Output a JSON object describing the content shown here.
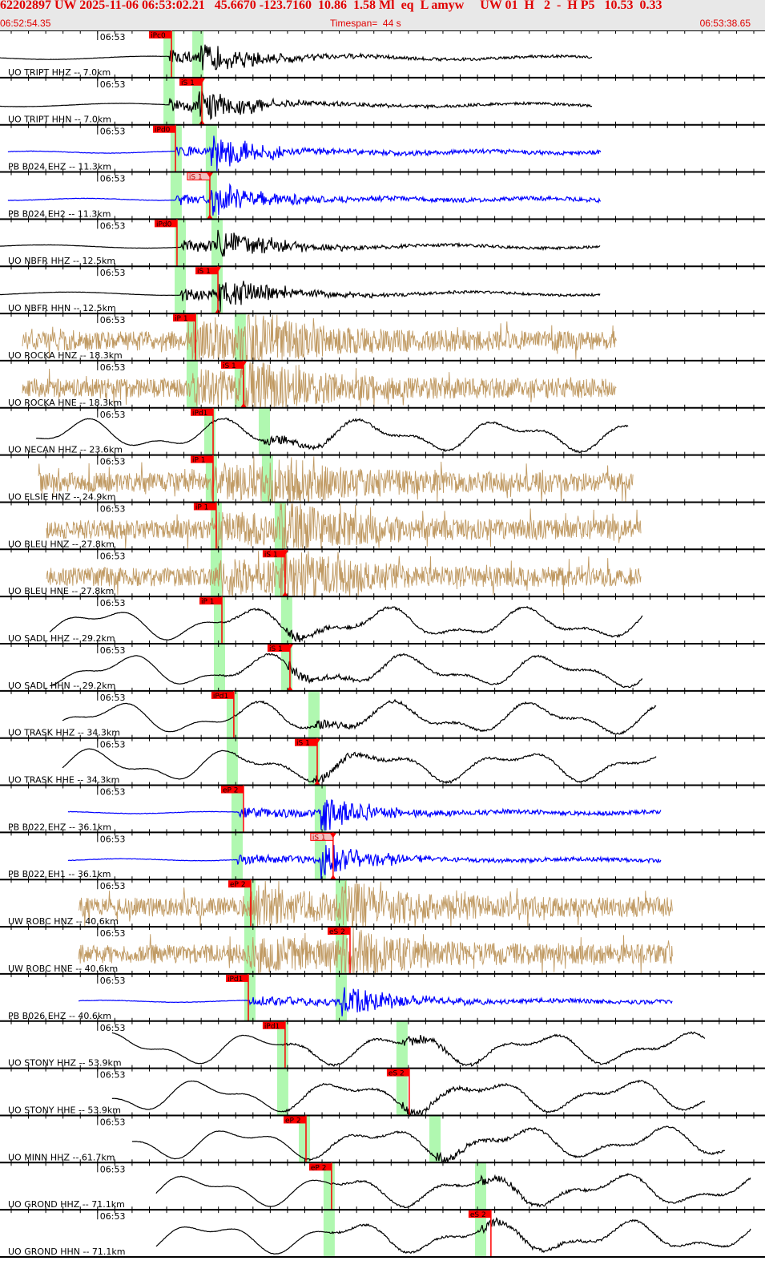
{
  "header": {
    "title": "62202897 UW 2025-11-06 06:53:02.21   45.6670 -123.7160  10.86  1.58 Ml  eq  L amyw     UW 01  H   2  -  H P5   10.53  0.33",
    "start_time": "06:52:54.35",
    "timespan": "Timespan=  44 s",
    "end_time": "06:53:38.65"
  },
  "colors": {
    "header_bg": "#e8e8e8",
    "header_text": "#e00000",
    "pick": "#ff0000",
    "pick_pending": "#f4c0c0",
    "predicted_band": "#b0f8b0",
    "broadband": "#000000",
    "strainmeter": "#0000ff",
    "strong_motion": "#c09a63"
  },
  "chart_data": {
    "type": "line",
    "title": "",
    "x_range": [
      "06:52:54.35",
      "06:53:38.65"
    ],
    "x_tick_interval_s": 1,
    "minute_label": "06:53",
    "traces": [
      {
        "label": "UO TRIPT HHZ -- 7.0km",
        "color": "#000000",
        "kind": "local",
        "span": [
          "06:52:54.35",
          "06:53:28.67"
        ],
        "pick": {
          "label": "iPc0",
          "time": "06:53:04.28",
          "phase": "P"
        },
        "predicted": [
          "06:53:04.14",
          "06:53:05.81"
        ]
      },
      {
        "label": "UO TRIPT HHN -- 7.0km",
        "color": "#000000",
        "kind": "local",
        "span": [
          "06:52:54.35",
          "06:53:28.67"
        ],
        "pick": {
          "label": "iS 1",
          "time": "06:53:06.04",
          "phase": "S"
        },
        "predicted": [
          "06:53:04.14",
          "06:53:05.81"
        ]
      },
      {
        "label": "PB B024 EHZ -- 11.3km",
        "color": "#0000ff",
        "kind": "quiet",
        "span": [
          "06:52:54.81",
          "06:53:29.14"
        ],
        "pick": {
          "label": "iPd0",
          "time": "06:53:04.51",
          "phase": "P"
        },
        "predicted": [
          "06:53:04.55",
          "06:53:06.59"
        ]
      },
      {
        "label": "PB B024 EH2 -- 11.3km",
        "color": "#0000ff",
        "kind": "quiet",
        "span": [
          "06:52:54.81",
          "06:53:29.14"
        ],
        "pick": {
          "label": "iS 1",
          "time": "06:53:06.50",
          "phase": "S",
          "pending": true
        },
        "predicted": [
          "06:53:04.55",
          "06:53:06.59"
        ]
      },
      {
        "label": "UO NBFR HHZ -- 12.5km",
        "color": "#000000",
        "kind": "local",
        "span": [
          "06:52:54.35",
          "06:53:29.14"
        ],
        "pick": {
          "label": "iPd0",
          "time": "06:53:04.60",
          "phase": "P"
        },
        "predicted": [
          "06:53:04.79",
          "06:53:06.92"
        ]
      },
      {
        "label": "UO NBFR HHN -- 12.5km",
        "color": "#000000",
        "kind": "local",
        "span": [
          "06:52:54.35",
          "06:53:29.14"
        ],
        "pick": {
          "label": "iS 1",
          "time": "06:53:06.97",
          "phase": "S"
        },
        "predicted": [
          "06:53:04.79",
          "06:53:06.92"
        ]
      },
      {
        "label": "UO ROCKA HNZ -- 18.3km",
        "color": "#c09a63",
        "kind": "noise",
        "span": [
          "06:52:55.65",
          "06:53:30.06"
        ],
        "pick": {
          "label": "iP 1",
          "time": "06:53:05.67",
          "phase": "P"
        },
        "predicted": [
          "06:53:05.48",
          "06:53:08.26"
        ]
      },
      {
        "label": "UO ROCKA HNE -- 18.3km",
        "color": "#c09a63",
        "kind": "noise",
        "span": [
          "06:52:55.65",
          "06:53:30.06"
        ],
        "pick": {
          "label": "iS 1",
          "time": "06:53:08.45",
          "phase": "S"
        },
        "predicted": [
          "06:53:05.48",
          "06:53:08.26"
        ]
      },
      {
        "label": "UO NECAN HHZ -- 23.6km",
        "color": "#000000",
        "kind": "smooth",
        "span": [
          "06:52:56.44",
          "06:53:30.76"
        ],
        "pick": {
          "label": "iPd1",
          "time": "06:53:06.69",
          "phase": "P"
        },
        "predicted": [
          "06:53:06.50",
          "06:53:09.66"
        ]
      },
      {
        "label": "UO ELSIE HNZ -- 24.9km",
        "color": "#c09a63",
        "kind": "noise",
        "span": [
          "06:52:56.58",
          "06:53:31.00"
        ],
        "pick": {
          "label": "iP 1",
          "time": "06:53:06.69",
          "phase": "P"
        },
        "predicted": [
          "06:53:06.59",
          "06:53:09.84"
        ]
      },
      {
        "label": "UO BLEU HNZ -- 27.8km",
        "color": "#c09a63",
        "kind": "noise",
        "span": [
          "06:52:57.04",
          "06:53:31.46"
        ],
        "pick": {
          "label": "iP 1",
          "time": "06:53:06.87",
          "phase": "P"
        },
        "predicted": [
          "06:53:06.87",
          "06:53:10.58"
        ]
      },
      {
        "label": "UO BLEU HNE -- 27.8km",
        "color": "#c09a63",
        "kind": "noise",
        "span": [
          "06:52:57.04",
          "06:53:31.46"
        ],
        "pick": {
          "label": "iS 1",
          "time": "06:53:10.86",
          "phase": "S"
        },
        "predicted": [
          "06:53:06.87",
          "06:53:10.58"
        ]
      },
      {
        "label": "UO SADL HHZ -- 29.2km",
        "color": "#000000",
        "kind": "smooth",
        "span": [
          "06:52:57.23",
          "06:53:31.59"
        ],
        "pick": {
          "label": "iP 1",
          "time": "06:53:07.20",
          "phase": "P"
        },
        "predicted": [
          "06:53:07.06",
          "06:53:10.95"
        ]
      },
      {
        "label": "UO SADL HHN -- 29.2km",
        "color": "#000000",
        "kind": "smooth",
        "span": [
          "06:52:57.23",
          "06:53:31.59"
        ],
        "pick": {
          "label": "iS 1",
          "time": "06:53:11.14",
          "phase": "S"
        },
        "predicted": [
          "06:53:07.06",
          "06:53:10.95"
        ]
      },
      {
        "label": "UO TRASK HHZ -- 34.3km",
        "color": "#000000",
        "kind": "smooth",
        "span": [
          "06:52:57.97",
          "06:53:32.38"
        ],
        "pick": {
          "label": "iPd1",
          "time": "06:53:07.89",
          "phase": "P"
        },
        "predicted": [
          "06:53:07.80",
          "06:53:12.53"
        ]
      },
      {
        "label": "UO TRASK HHE -- 34.3km",
        "color": "#000000",
        "kind": "smooth",
        "span": [
          "06:52:57.97",
          "06:53:32.38"
        ],
        "pick": {
          "label": "iS 1",
          "time": "06:53:12.72",
          "phase": "S"
        },
        "predicted": [
          "06:53:07.80",
          "06:53:12.53"
        ]
      },
      {
        "label": "PB B022 EHZ -- 36.1km",
        "color": "#0000ff",
        "kind": "quiet",
        "span": [
          "06:52:58.29",
          "06:53:32.62"
        ],
        "pick": {
          "label": "eP 2",
          "time": "06:53:08.45",
          "phase": "P"
        },
        "predicted": [
          "06:53:08.08",
          "06:53:12.90"
        ]
      },
      {
        "label": "PB B022 EH1 -- 36.1km",
        "color": "#0000ff",
        "kind": "quiet",
        "span": [
          "06:52:58.29",
          "06:53:32.62"
        ],
        "pick": {
          "label": "iS 1",
          "time": "06:53:13.64",
          "phase": "S",
          "pending": true
        },
        "predicted": [
          "06:53:08.08",
          "06:53:12.90"
        ]
      },
      {
        "label": "UW ROBC HNZ -- 40.6km",
        "color": "#c09a63",
        "kind": "noise",
        "span": [
          "06:52:58.90",
          "06:53:33.31"
        ],
        "pick": {
          "label": "eP 2",
          "time": "06:53:08.87",
          "phase": "P"
        },
        "predicted": [
          "06:53:08.82",
          "06:53:14.11"
        ]
      },
      {
        "label": "UW ROBC HNE -- 40.6km",
        "color": "#c09a63",
        "kind": "noise",
        "span": [
          "06:52:58.90",
          "06:53:33.31"
        ],
        "pick": {
          "label": "eS 2",
          "time": "06:53:14.62",
          "phase": "S"
        },
        "predicted": [
          "06:53:08.82",
          "06:53:14.11"
        ]
      },
      {
        "label": "PB B026 EHZ -- 40.6km",
        "color": "#0000ff",
        "kind": "quiet",
        "span": [
          "06:52:58.90",
          "06:53:33.31"
        ],
        "pick": {
          "label": "iPd1",
          "time": "06:53:08.73",
          "phase": "P"
        },
        "predicted": [
          "06:53:08.82",
          "06:53:14.11"
        ]
      },
      {
        "label": "UO STONY HHZ -- 53.9km",
        "color": "#000000",
        "kind": "smooth",
        "span": [
          "06:53:00.84",
          "06:53:35.17"
        ],
        "pick": {
          "label": "iPd1",
          "time": "06:53:10.86",
          "phase": "P"
        },
        "predicted": [
          "06:53:10.72",
          "06:53:17.63"
        ]
      },
      {
        "label": "UO STONY HHE -- 53.9km",
        "color": "#000000",
        "kind": "smooth",
        "span": [
          "06:53:00.84",
          "06:53:35.17"
        ],
        "pick": {
          "label": "eS 2",
          "time": "06:53:18.05",
          "phase": "S"
        },
        "predicted": [
          "06:53:10.72",
          "06:53:17.63"
        ]
      },
      {
        "label": "UO MINN HHZ -- 61.7km",
        "color": "#000000",
        "kind": "smooth",
        "span": [
          "06:53:02.00",
          "06:53:36.33"
        ],
        "pick": {
          "label": "eP 2",
          "time": "06:53:12.07",
          "phase": "P"
        },
        "predicted": [
          "06:53:11.98",
          "06:53:19.54"
        ]
      },
      {
        "label": "UO GROND HHZ -- 71.1km",
        "color": "#000000",
        "kind": "smooth",
        "span": [
          "06:53:03.39",
          "06:53:37.81"
        ],
        "pick": {
          "label": "eP 2",
          "time": "06:53:13.55",
          "phase": "P"
        },
        "predicted": [
          "06:53:13.41",
          "06:53:22.18"
        ]
      },
      {
        "label": "UO GROND HHN -- 71.1km",
        "color": "#000000",
        "kind": "smooth",
        "span": [
          "06:53:03.39",
          "06:53:37.81"
        ],
        "pick": {
          "label": "eS 2",
          "time": "06:53:22.78",
          "phase": "S"
        },
        "predicted": [
          "06:53:13.41",
          "06:53:22.18"
        ]
      }
    ]
  }
}
